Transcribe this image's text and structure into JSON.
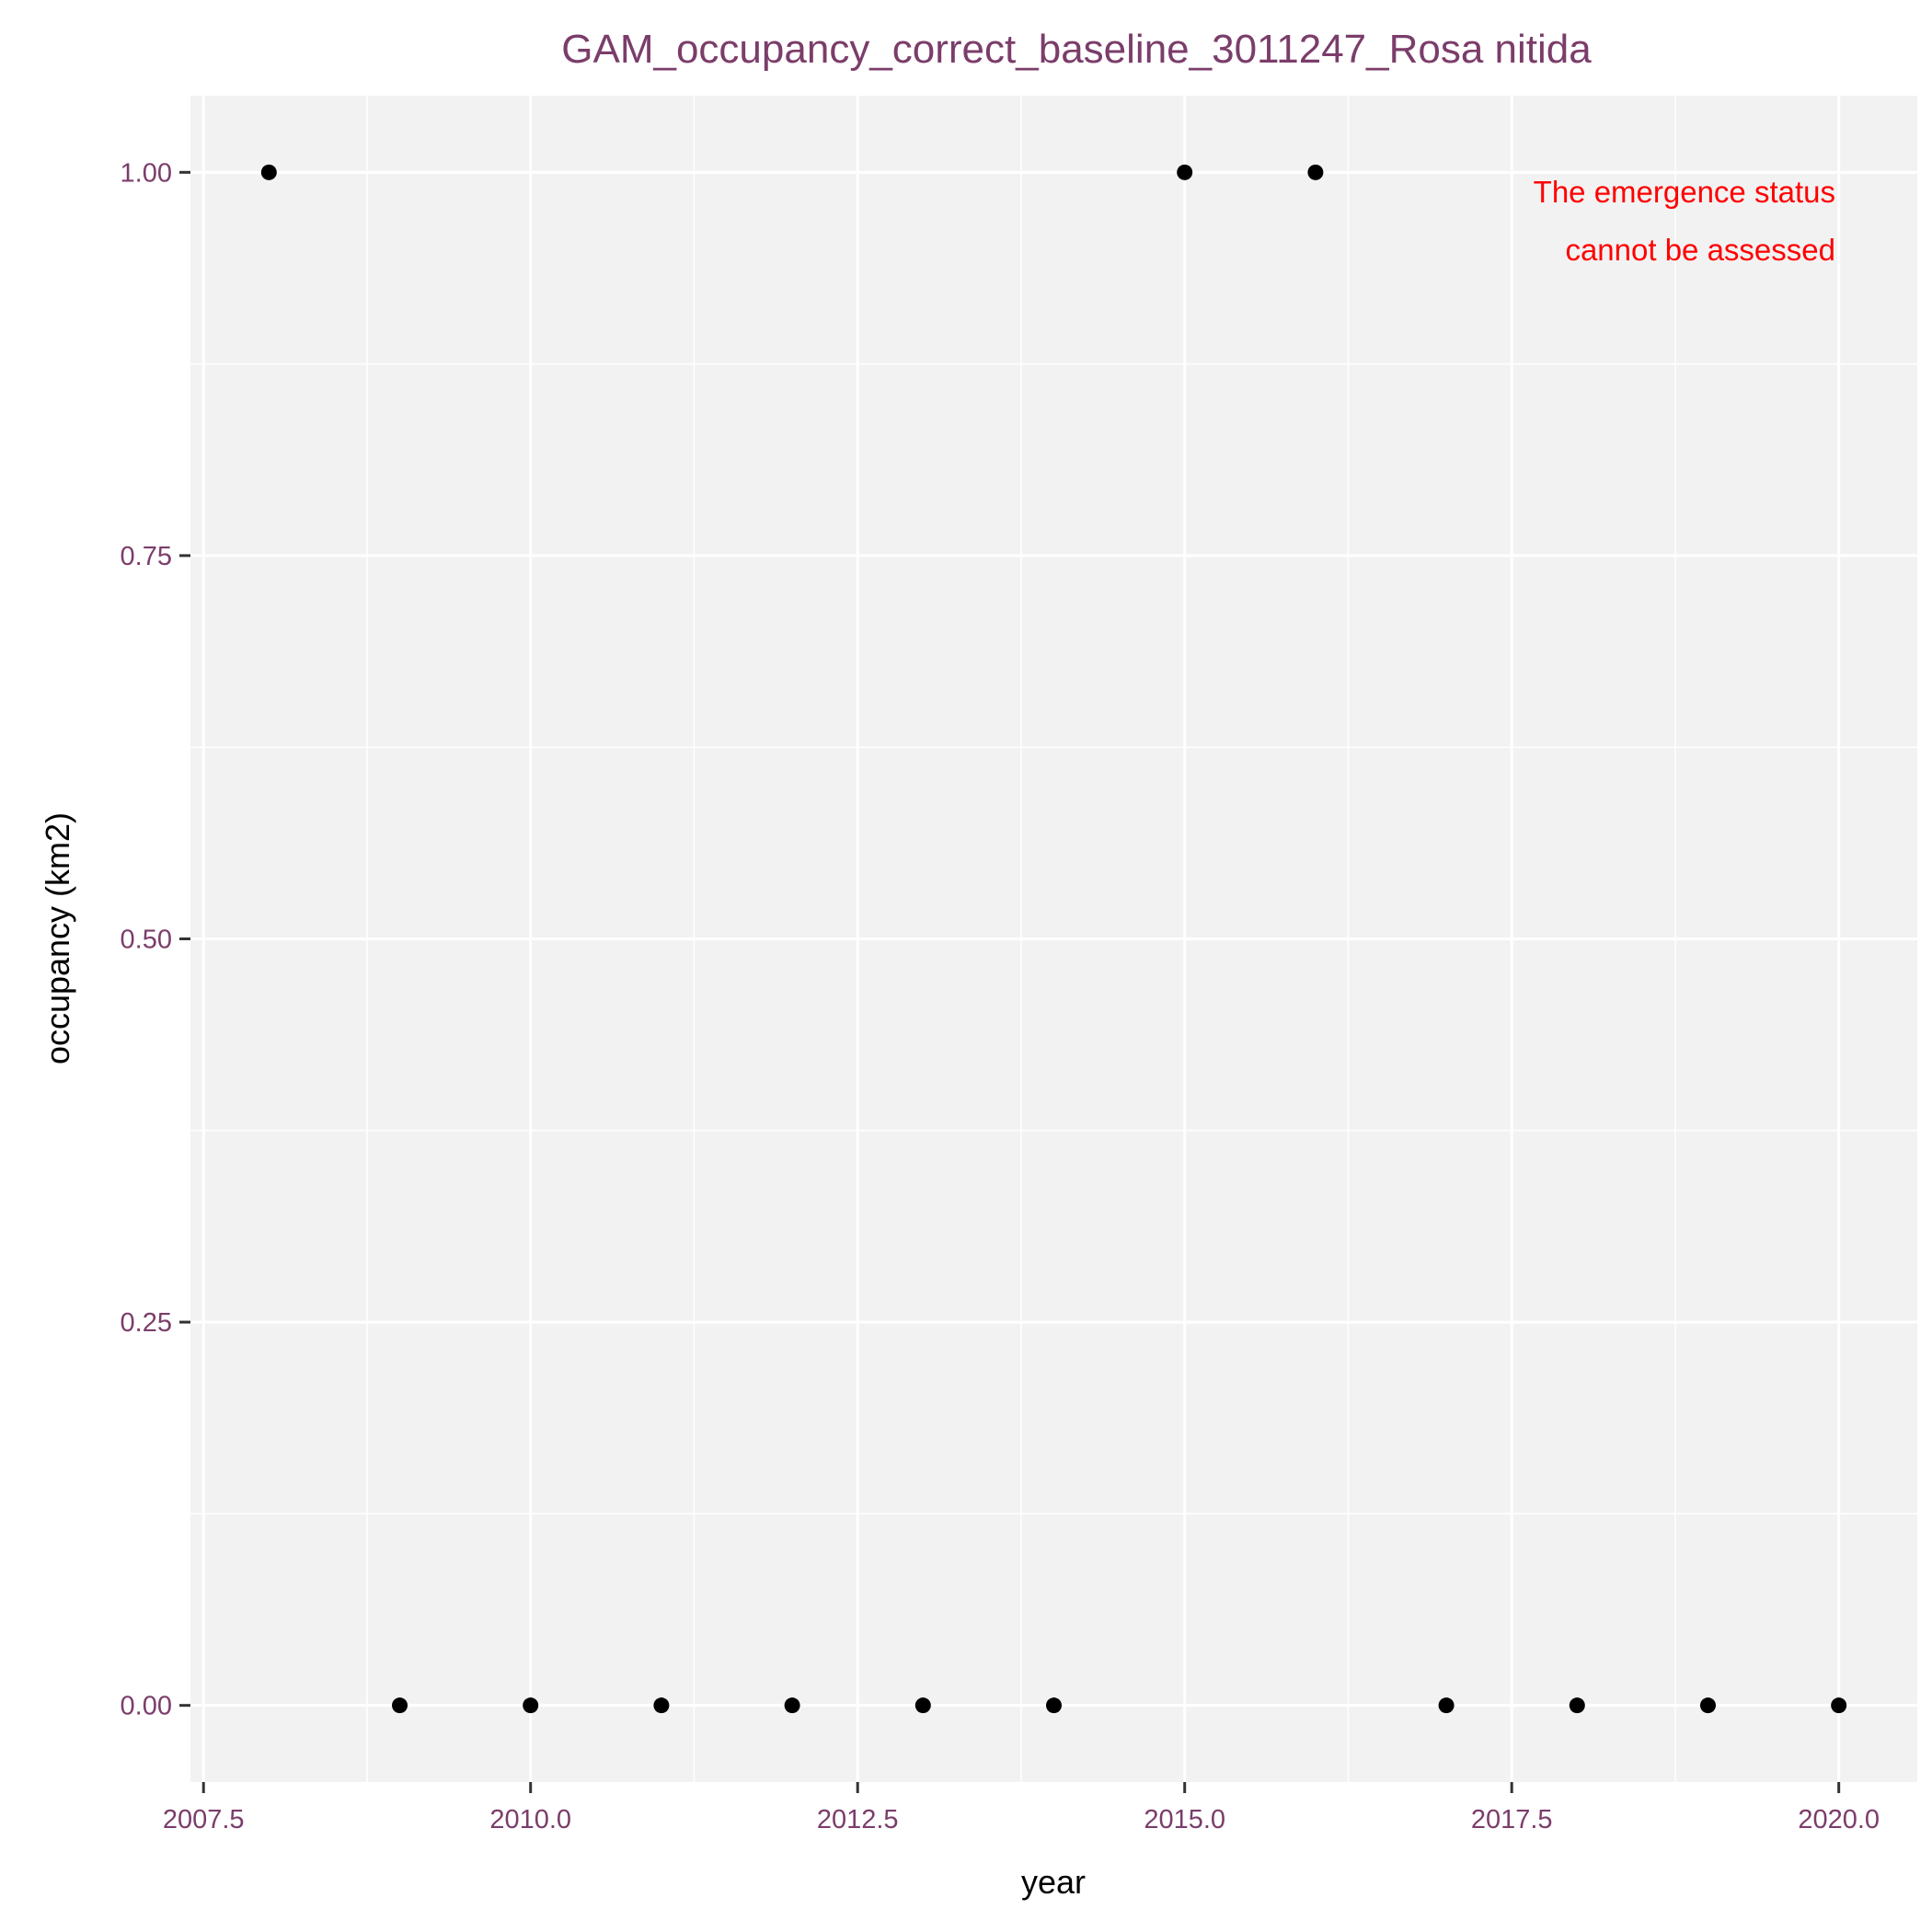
{
  "chart_data": {
    "type": "scatter",
    "title": "GAM_occupancy_correct_baseline_3011247_Rosa nitida",
    "xlabel": "year",
    "ylabel": "occupancy (km2)",
    "xlim": [
      2007.4,
      2020.6
    ],
    "ylim": [
      -0.05,
      1.05
    ],
    "x_ticks": [
      2007.5,
      2010.0,
      2012.5,
      2015.0,
      2017.5,
      2020.0
    ],
    "x_tick_labels": [
      "2007.5",
      "2010.0",
      "2012.5",
      "2015.0",
      "2017.5",
      "2020.0"
    ],
    "y_ticks": [
      0,
      0.25,
      0.5,
      0.75,
      1.0
    ],
    "y_tick_labels": [
      "0.00",
      "0.25",
      "0.50",
      "0.75",
      "1.00"
    ],
    "grid": true,
    "points": [
      {
        "x": 2008,
        "y": 1
      },
      {
        "x": 2009,
        "y": 0
      },
      {
        "x": 2010,
        "y": 0
      },
      {
        "x": 2011,
        "y": 0
      },
      {
        "x": 2012,
        "y": 0
      },
      {
        "x": 2013,
        "y": 0
      },
      {
        "x": 2014,
        "y": 0
      },
      {
        "x": 2015,
        "y": 1
      },
      {
        "x": 2016,
        "y": 1
      },
      {
        "x": 2017,
        "y": 0
      },
      {
        "x": 2018,
        "y": 0
      },
      {
        "x": 2019,
        "y": 0
      },
      {
        "x": 2020,
        "y": 0
      }
    ],
    "annotation": {
      "lines": [
        "The emergence status",
        "cannot be assessed"
      ],
      "placement": "top-right"
    }
  },
  "colors": {
    "panel": "#f2f2f2",
    "grid": "#ffffff",
    "point": "#000000",
    "title": "#7b3d6a",
    "tick_label": "#7b3d6a",
    "annotation": "#ff0000"
  }
}
